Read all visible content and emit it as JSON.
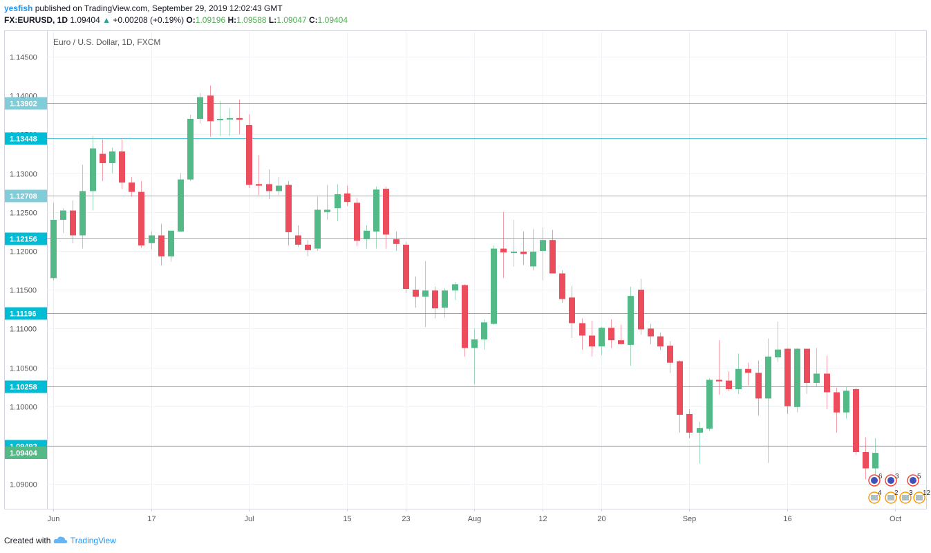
{
  "header": {
    "user": "yesfish",
    "published": "published on TradingView.com, September 29, 2019 12:02:43 GMT",
    "symbol": "FX:EURUSD, 1D",
    "last": "1.09404",
    "arrow": "▲",
    "change": "+0.00208 (+0.19%)",
    "o_label": "O:",
    "o_value": "1.09196",
    "h_label": "H:",
    "h_value": "1.09588",
    "l_label": "L:",
    "l_value": "1.09047",
    "c_label": "C:",
    "c_value": "1.09404"
  },
  "footer": {
    "created_with": "Created with",
    "logo_text": "TradingView"
  },
  "colors": {
    "up": "#53b987",
    "down": "#eb4d5c",
    "level": "#4fc3d7",
    "level_label": "#00bcd4",
    "level_label_light": "#80cdd9",
    "grid": "#eef1f5",
    "axis_text": "#555555",
    "last_label": "#53b987"
  },
  "chart_data": {
    "type": "candlestick",
    "title": "Euro / U.S. Dollar, 1D, FXCM",
    "ylim": [
      1.0868,
      1.1483
    ],
    "y_ticks": [
      "1.14500",
      "1.14000",
      "1.13500",
      "1.13000",
      "1.12500",
      "1.12000",
      "1.11500",
      "1.11000",
      "1.10500",
      "1.10000",
      "1.09500",
      "1.09000"
    ],
    "y_tick_values": [
      1.145,
      1.14,
      1.135,
      1.13,
      1.125,
      1.12,
      1.115,
      1.11,
      1.105,
      1.1,
      1.095,
      1.09
    ],
    "x_ticks": [
      {
        "label": "Jun",
        "date": "2019-06-03"
      },
      {
        "label": "17",
        "date": "2019-06-17"
      },
      {
        "label": "Jul",
        "date": "2019-07-01"
      },
      {
        "label": "15",
        "date": "2019-07-15"
      },
      {
        "label": "23",
        "date": "2019-07-23"
      },
      {
        "label": "Aug",
        "date": "2019-08-01"
      },
      {
        "label": "12",
        "date": "2019-08-12"
      },
      {
        "label": "20",
        "date": "2019-08-20"
      },
      {
        "label": "Sep",
        "date": "2019-09-02"
      },
      {
        "label": "16",
        "date": "2019-09-16"
      },
      {
        "label": "Oct",
        "date": "2019-10-01"
      }
    ],
    "levels": [
      {
        "value": 1.13902,
        "label": "1.13902",
        "style": "light"
      },
      {
        "value": 1.13448,
        "label": "1.13448",
        "style": "dark"
      },
      {
        "value": 1.12708,
        "label": "1.12708",
        "style": "light"
      },
      {
        "value": 1.12156,
        "label": "1.12156",
        "style": "dark"
      },
      {
        "value": 1.11196,
        "label": "1.11196",
        "style": "dark"
      },
      {
        "value": 1.10258,
        "label": "1.10258",
        "style": "dark"
      },
      {
        "value": 1.09492,
        "label": "1.09492",
        "style": "dark"
      }
    ],
    "last_price": {
      "value": 1.09404,
      "label": "1.09404"
    },
    "events": {
      "top": [
        "6",
        "3",
        "5"
      ],
      "bottom": [
        "4",
        "2",
        "3",
        "12"
      ]
    },
    "candles": [
      {
        "date": "2019-06-03",
        "o": 1.1165,
        "h": 1.1262,
        "l": 1.1162,
        "c": 1.124
      },
      {
        "date": "2019-06-04",
        "o": 1.124,
        "h": 1.1255,
        "l": 1.1223,
        "c": 1.1252
      },
      {
        "date": "2019-06-05",
        "o": 1.1252,
        "h": 1.1265,
        "l": 1.121,
        "c": 1.122
      },
      {
        "date": "2019-06-06",
        "o": 1.122,
        "h": 1.1311,
        "l": 1.1203,
        "c": 1.1277
      },
      {
        "date": "2019-06-07",
        "o": 1.1277,
        "h": 1.1348,
        "l": 1.1252,
        "c": 1.1332
      },
      {
        "date": "2019-06-10",
        "o": 1.1325,
        "h": 1.1344,
        "l": 1.129,
        "c": 1.1313
      },
      {
        "date": "2019-06-11",
        "o": 1.1313,
        "h": 1.1333,
        "l": 1.13,
        "c": 1.1328
      },
      {
        "date": "2019-06-12",
        "o": 1.1328,
        "h": 1.1345,
        "l": 1.128,
        "c": 1.1288
      },
      {
        "date": "2019-06-13",
        "o": 1.1288,
        "h": 1.1295,
        "l": 1.127,
        "c": 1.1276
      },
      {
        "date": "2019-06-14",
        "o": 1.1276,
        "h": 1.129,
        "l": 1.1204,
        "c": 1.1207
      },
      {
        "date": "2019-06-17",
        "o": 1.121,
        "h": 1.1225,
        "l": 1.1202,
        "c": 1.122
      },
      {
        "date": "2019-06-18",
        "o": 1.122,
        "h": 1.1235,
        "l": 1.1181,
        "c": 1.1193
      },
      {
        "date": "2019-06-19",
        "o": 1.1193,
        "h": 1.1226,
        "l": 1.1186,
        "c": 1.1226
      },
      {
        "date": "2019-06-20",
        "o": 1.1225,
        "h": 1.13,
        "l": 1.1225,
        "c": 1.1292
      },
      {
        "date": "2019-06-21",
        "o": 1.1292,
        "h": 1.1375,
        "l": 1.129,
        "c": 1.137
      },
      {
        "date": "2019-06-24",
        "o": 1.137,
        "h": 1.1403,
        "l": 1.1364,
        "c": 1.1398
      },
      {
        "date": "2019-06-25",
        "o": 1.14,
        "h": 1.1413,
        "l": 1.1347,
        "c": 1.1367
      },
      {
        "date": "2019-06-26",
        "o": 1.1369,
        "h": 1.1393,
        "l": 1.1348,
        "c": 1.137
      },
      {
        "date": "2019-06-27",
        "o": 1.137,
        "h": 1.1384,
        "l": 1.1348,
        "c": 1.1371
      },
      {
        "date": "2019-06-28",
        "o": 1.1371,
        "h": 1.1395,
        "l": 1.135,
        "c": 1.1369
      },
      {
        "date": "2019-07-01",
        "o": 1.1362,
        "h": 1.1376,
        "l": 1.1281,
        "c": 1.1285
      },
      {
        "date": "2019-07-02",
        "o": 1.1286,
        "h": 1.1323,
        "l": 1.1272,
        "c": 1.1284
      },
      {
        "date": "2019-07-03",
        "o": 1.1286,
        "h": 1.1305,
        "l": 1.1267,
        "c": 1.1277
      },
      {
        "date": "2019-07-04",
        "o": 1.1277,
        "h": 1.1295,
        "l": 1.1272,
        "c": 1.1284
      },
      {
        "date": "2019-07-05",
        "o": 1.1285,
        "h": 1.129,
        "l": 1.1207,
        "c": 1.1224
      },
      {
        "date": "2019-07-08",
        "o": 1.122,
        "h": 1.1233,
        "l": 1.1205,
        "c": 1.1208
      },
      {
        "date": "2019-07-09",
        "o": 1.1208,
        "h": 1.1214,
        "l": 1.1193,
        "c": 1.1201
      },
      {
        "date": "2019-07-10",
        "o": 1.1203,
        "h": 1.127,
        "l": 1.12,
        "c": 1.1253
      },
      {
        "date": "2019-07-11",
        "o": 1.125,
        "h": 1.1285,
        "l": 1.124,
        "c": 1.1253
      },
      {
        "date": "2019-07-12",
        "o": 1.1255,
        "h": 1.1286,
        "l": 1.1238,
        "c": 1.1273
      },
      {
        "date": "2019-07-15",
        "o": 1.1274,
        "h": 1.1284,
        "l": 1.1258,
        "c": 1.1263
      },
      {
        "date": "2019-07-16",
        "o": 1.1262,
        "h": 1.1268,
        "l": 1.1206,
        "c": 1.1213
      },
      {
        "date": "2019-07-17",
        "o": 1.1215,
        "h": 1.1233,
        "l": 1.1203,
        "c": 1.1226
      },
      {
        "date": "2019-07-18",
        "o": 1.1225,
        "h": 1.1283,
        "l": 1.1203,
        "c": 1.1279
      },
      {
        "date": "2019-07-19",
        "o": 1.128,
        "h": 1.1283,
        "l": 1.1203,
        "c": 1.1221
      },
      {
        "date": "2019-07-22",
        "o": 1.1215,
        "h": 1.1225,
        "l": 1.12,
        "c": 1.1209
      },
      {
        "date": "2019-07-23",
        "o": 1.1208,
        "h": 1.1212,
        "l": 1.1146,
        "c": 1.1151
      },
      {
        "date": "2019-07-24",
        "o": 1.115,
        "h": 1.1167,
        "l": 1.1127,
        "c": 1.1141
      },
      {
        "date": "2019-07-25",
        "o": 1.1141,
        "h": 1.1187,
        "l": 1.1102,
        "c": 1.1149
      },
      {
        "date": "2019-07-26",
        "o": 1.1149,
        "h": 1.1154,
        "l": 1.1113,
        "c": 1.1126
      },
      {
        "date": "2019-07-29",
        "o": 1.1127,
        "h": 1.1152,
        "l": 1.1114,
        "c": 1.1149
      },
      {
        "date": "2019-07-30",
        "o": 1.1149,
        "h": 1.116,
        "l": 1.1137,
        "c": 1.1157
      },
      {
        "date": "2019-07-31",
        "o": 1.1156,
        "h": 1.1157,
        "l": 1.1064,
        "c": 1.1075
      },
      {
        "date": "2019-08-01",
        "o": 1.1075,
        "h": 1.11,
        "l": 1.1028,
        "c": 1.1086
      },
      {
        "date": "2019-08-02",
        "o": 1.1086,
        "h": 1.1112,
        "l": 1.1073,
        "c": 1.1108
      },
      {
        "date": "2019-08-05",
        "o": 1.1106,
        "h": 1.1207,
        "l": 1.1105,
        "c": 1.1203
      },
      {
        "date": "2019-08-06",
        "o": 1.1203,
        "h": 1.125,
        "l": 1.1165,
        "c": 1.1198
      },
      {
        "date": "2019-08-07",
        "o": 1.1198,
        "h": 1.124,
        "l": 1.118,
        "c": 1.1199
      },
      {
        "date": "2019-08-08",
        "o": 1.1199,
        "h": 1.1225,
        "l": 1.1182,
        "c": 1.1196
      },
      {
        "date": "2019-08-09",
        "o": 1.118,
        "h": 1.1228,
        "l": 1.1175,
        "c": 1.1199
      },
      {
        "date": "2019-08-12",
        "o": 1.12,
        "h": 1.123,
        "l": 1.1162,
        "c": 1.1214
      },
      {
        "date": "2019-08-13",
        "o": 1.1214,
        "h": 1.1227,
        "l": 1.1171,
        "c": 1.1171
      },
      {
        "date": "2019-08-14",
        "o": 1.1171,
        "h": 1.1175,
        "l": 1.1133,
        "c": 1.1138
      },
      {
        "date": "2019-08-15",
        "o": 1.114,
        "h": 1.1155,
        "l": 1.1088,
        "c": 1.1107
      },
      {
        "date": "2019-08-16",
        "o": 1.1107,
        "h": 1.1113,
        "l": 1.1073,
        "c": 1.1091
      },
      {
        "date": "2019-08-19",
        "o": 1.1091,
        "h": 1.111,
        "l": 1.1064,
        "c": 1.1077
      },
      {
        "date": "2019-08-20",
        "o": 1.1077,
        "h": 1.1102,
        "l": 1.1066,
        "c": 1.1101
      },
      {
        "date": "2019-08-21",
        "o": 1.1101,
        "h": 1.1112,
        "l": 1.1075,
        "c": 1.1085
      },
      {
        "date": "2019-08-22",
        "o": 1.1085,
        "h": 1.1105,
        "l": 1.1079,
        "c": 1.108
      },
      {
        "date": "2019-08-23",
        "o": 1.1079,
        "h": 1.1154,
        "l": 1.1052,
        "c": 1.1142
      },
      {
        "date": "2019-08-26",
        "o": 1.115,
        "h": 1.1164,
        "l": 1.1092,
        "c": 1.1099
      },
      {
        "date": "2019-08-27",
        "o": 1.11,
        "h": 1.1106,
        "l": 1.108,
        "c": 1.109
      },
      {
        "date": "2019-08-28",
        "o": 1.109,
        "h": 1.1095,
        "l": 1.1072,
        "c": 1.1077
      },
      {
        "date": "2019-08-29",
        "o": 1.1078,
        "h": 1.1084,
        "l": 1.1043,
        "c": 1.1056
      },
      {
        "date": "2019-08-30",
        "o": 1.1058,
        "h": 1.1059,
        "l": 1.0966,
        "c": 1.0989
      },
      {
        "date": "2019-09-02",
        "o": 1.099,
        "h": 1.0996,
        "l": 1.0959,
        "c": 1.0966
      },
      {
        "date": "2019-09-03",
        "o": 1.0966,
        "h": 1.098,
        "l": 1.0926,
        "c": 1.0972
      },
      {
        "date": "2019-09-04",
        "o": 1.0971,
        "h": 1.1036,
        "l": 1.0968,
        "c": 1.1034
      },
      {
        "date": "2019-09-05",
        "o": 1.1034,
        "h": 1.1085,
        "l": 1.1015,
        "c": 1.1032
      },
      {
        "date": "2019-09-06",
        "o": 1.1033,
        "h": 1.1045,
        "l": 1.102,
        "c": 1.1022
      },
      {
        "date": "2019-09-09",
        "o": 1.1022,
        "h": 1.1068,
        "l": 1.1016,
        "c": 1.1048
      },
      {
        "date": "2019-09-10",
        "o": 1.1048,
        "h": 1.1056,
        "l": 1.1027,
        "c": 1.1043
      },
      {
        "date": "2019-09-11",
        "o": 1.1043,
        "h": 1.1059,
        "l": 1.0988,
        "c": 1.101
      },
      {
        "date": "2019-09-12",
        "o": 1.101,
        "h": 1.1087,
        "l": 1.0927,
        "c": 1.1064
      },
      {
        "date": "2019-09-13",
        "o": 1.1063,
        "h": 1.1109,
        "l": 1.1057,
        "c": 1.1073
      },
      {
        "date": "2019-09-16",
        "o": 1.1074,
        "h": 1.1075,
        "l": 1.099,
        "c": 1.1
      },
      {
        "date": "2019-09-17",
        "o": 1.0999,
        "h": 1.1075,
        "l": 1.0992,
        "c": 1.1074
      },
      {
        "date": "2019-09-18",
        "o": 1.1074,
        "h": 1.1074,
        "l": 1.1016,
        "c": 1.103
      },
      {
        "date": "2019-09-19",
        "o": 1.103,
        "h": 1.1075,
        "l": 1.1025,
        "c": 1.1042
      },
      {
        "date": "2019-09-20",
        "o": 1.1042,
        "h": 1.1065,
        "l": 1.0996,
        "c": 1.1018
      },
      {
        "date": "2019-09-23",
        "o": 1.1018,
        "h": 1.1024,
        "l": 1.0966,
        "c": 1.0992
      },
      {
        "date": "2019-09-24",
        "o": 1.0992,
        "h": 1.1025,
        "l": 1.0984,
        "c": 1.102
      },
      {
        "date": "2019-09-25",
        "o": 1.1022,
        "h": 1.1024,
        "l": 1.0937,
        "c": 1.0941
      },
      {
        "date": "2019-09-26",
        "o": 1.0941,
        "h": 1.096,
        "l": 1.0906,
        "c": 1.092
      },
      {
        "date": "2019-09-27",
        "o": 1.092,
        "h": 1.0959,
        "l": 1.0905,
        "c": 1.094
      }
    ]
  }
}
